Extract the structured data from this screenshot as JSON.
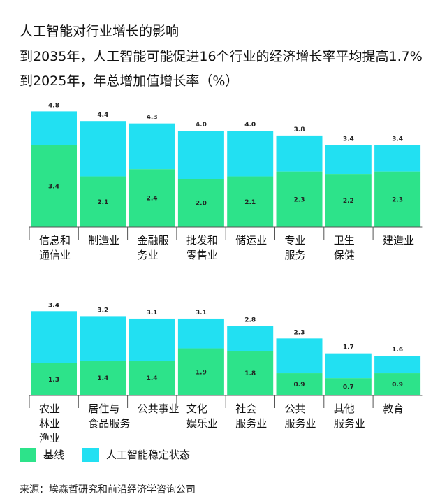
{
  "title_lines": [
    "人工智能对行业增长的影响",
    "到2035年，人工智能可能促进16个行业的经济增长率平均提高1.7%",
    "到2025年，年总增加值增长率（%）"
  ],
  "colors": {
    "baseline": "#2de38a",
    "ai": "#22e0f2"
  },
  "chart_data": [
    {
      "type": "bar",
      "stacked": true,
      "categories": [
        "信息和\n通信业",
        "制造业",
        "金融服\n务业",
        "批发和\n零售业",
        "储运业",
        "专业\n服务",
        "卫生\n保健",
        "建造业"
      ],
      "series": [
        {
          "name": "基线",
          "values": [
            3.4,
            2.1,
            2.4,
            2.0,
            2.1,
            2.3,
            2.2,
            2.3
          ]
        },
        {
          "name": "人工智能稳定状态",
          "totals": [
            4.8,
            4.4,
            4.3,
            4.0,
            4.0,
            3.8,
            3.4,
            3.4
          ]
        }
      ],
      "value_labels": {
        "baseline": [
          "3.4",
          "2.1",
          "2.4",
          "2.0",
          "2.1",
          "2.3",
          "2.2",
          "2.3"
        ],
        "totals": [
          "4.8",
          "4.4",
          "4.3",
          "4.0",
          "4.0",
          "3.8",
          "3.4",
          "3.4"
        ]
      }
    },
    {
      "type": "bar",
      "stacked": true,
      "categories": [
        "农业\n林业\n渔业",
        "居住与\n食品服务",
        "公共事业",
        "文化\n娱乐业",
        "社会\n服务业",
        "公共\n服务业",
        "其他\n服务业",
        "教育"
      ],
      "series": [
        {
          "name": "基线",
          "values": [
            1.3,
            1.4,
            1.4,
            1.9,
            1.8,
            0.9,
            0.7,
            0.9
          ]
        },
        {
          "name": "人工智能稳定状态",
          "totals": [
            3.4,
            3.2,
            3.1,
            3.1,
            2.8,
            2.3,
            1.7,
            1.6
          ]
        }
      ],
      "value_labels": {
        "baseline": [
          "1.3",
          "1.4",
          "1.4",
          "1.9",
          "1.8",
          "0.9",
          "0.7",
          "0.9"
        ],
        "totals": [
          "3.4",
          "3.2",
          "3.1",
          "3.1",
          "2.8",
          "2.3",
          "1.7",
          "1.6"
        ]
      }
    }
  ],
  "legend": {
    "baseline": "基线",
    "ai": "人工智能稳定状态"
  },
  "source": "来源：埃森哲研究和前沿经济学咨询公司"
}
